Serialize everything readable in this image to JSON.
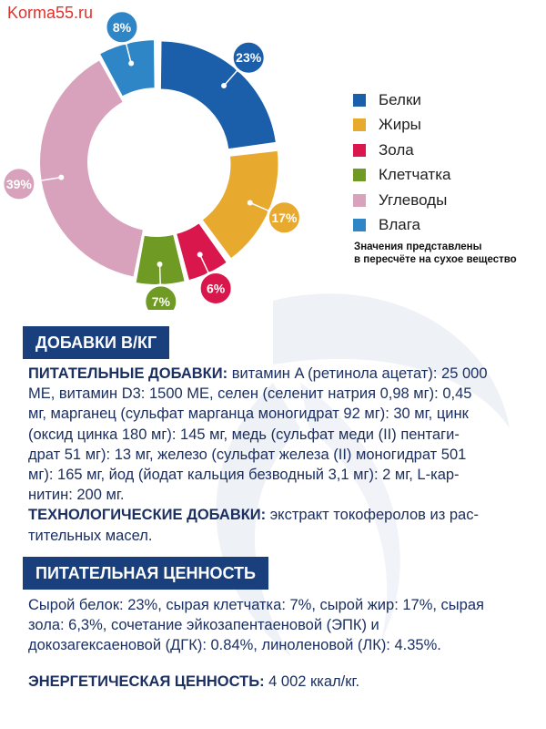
{
  "watermark": "Korma55.ru",
  "chart_data": {
    "type": "pie",
    "variant": "donut",
    "legend_position": "right",
    "categories": [
      "Белки",
      "Жиры",
      "Зола",
      "Клетчатка",
      "Углеводы",
      "Влага"
    ],
    "values": [
      23,
      17,
      6,
      7,
      39,
      8
    ],
    "labels": [
      "23%",
      "17%",
      "6%",
      "7%",
      "39%",
      "8%"
    ],
    "colors": [
      "#1b5fab",
      "#e8a92f",
      "#d9174c",
      "#6f9a24",
      "#d8a2bd",
      "#2f86c6"
    ],
    "note": [
      "Значения представлены",
      "в пересчёте на сухое вещество"
    ]
  },
  "additives": {
    "heading": "ДОБАВКИ В/КГ",
    "nutritional_label": "ПИТАТЕЛЬНЫЕ ДОБАВКИ:",
    "nutritional_lines": [
      " витамин A (ретинола ацетат): 25 000",
      "МЕ, витамин D3: 1500 МЕ, селен (селенит натрия 0,98 мг): 0,45",
      "мг, марганец (сульфат марганца моногидрат 92 мг): 30 мг, цинк",
      "(оксид цинка 180 мг): 145 мг, медь (сульфат меди (II) пентаги-",
      "драт 51 мг): 13 мг, железо (сульфат железа (II) моногидрат 501",
      "мг): 165 мг, йод (йодат кальция безводный 3,1 мг): 2 мг, L-кар-",
      "нитин: 200 мг."
    ],
    "technological_label": "ТЕХНОЛОГИЧЕСКИЕ ДОБАВКИ:",
    "technological_lines": [
      " экстракт токоферолов из рас-",
      "тительных масел."
    ]
  },
  "nutrition": {
    "heading": "ПИТАТЕЛЬНАЯ ЦЕННОСТЬ",
    "lines": [
      "Сырой белок: 23%, сырая клетчатка: 7%, сырой жир: 17%, сырая",
      "зола: 6,3%, сочетание эйкозапентаеновой (ЭПК) и",
      "докозагексаеновой (ДГК): 0.84%, линоленовой (ЛК): 4.35%."
    ],
    "energy_label": "ЭНЕРГЕТИЧЕСКАЯ ЦЕННОСТЬ:",
    "energy_value": " 4 002 ккал/кг."
  }
}
